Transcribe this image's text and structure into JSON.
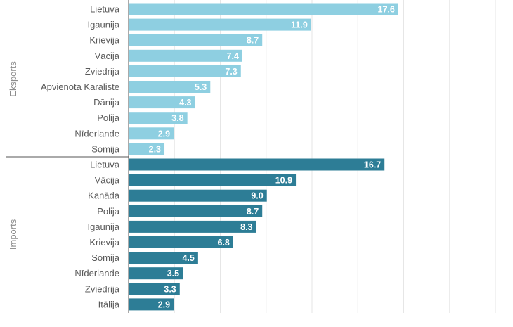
{
  "chart_data": {
    "type": "bar",
    "orientation": "horizontal",
    "grid": true,
    "xlim": [
      0,
      30
    ],
    "groups": [
      {
        "name": "Eksports",
        "color": "#8ecfe1",
        "categories": [
          "Lietuva",
          "Igaunija",
          "Krievija",
          "Vācija",
          "Zviedrija",
          "Apvienotā Karaliste",
          "Dānija",
          "Polija",
          "Nīderlande",
          "Somija"
        ],
        "values": [
          17.6,
          11.9,
          8.7,
          7.4,
          7.3,
          5.3,
          4.3,
          3.8,
          2.9,
          2.3
        ],
        "value_labels": [
          "17.6",
          "11.9",
          "8.7",
          "7.4",
          "7.3",
          "5.3",
          "4.3",
          "3.8",
          "2.9",
          "2.3"
        ]
      },
      {
        "name": "Imports",
        "color": "#2d7d96",
        "categories": [
          "Lietuva",
          "Vācija",
          "Kanāda",
          "Polija",
          "Igaunija",
          "Krievija",
          "Somija",
          "Nīderlande",
          "Zviedrija",
          "Itālija"
        ],
        "values": [
          16.7,
          10.9,
          9.0,
          8.7,
          8.3,
          6.8,
          4.5,
          3.5,
          3.3,
          2.9
        ],
        "value_labels": [
          "16.7",
          "10.9",
          "9.0",
          "8.7",
          "8.3",
          "6.8",
          "4.5",
          "3.5",
          "3.3",
          "2.9"
        ]
      }
    ]
  }
}
